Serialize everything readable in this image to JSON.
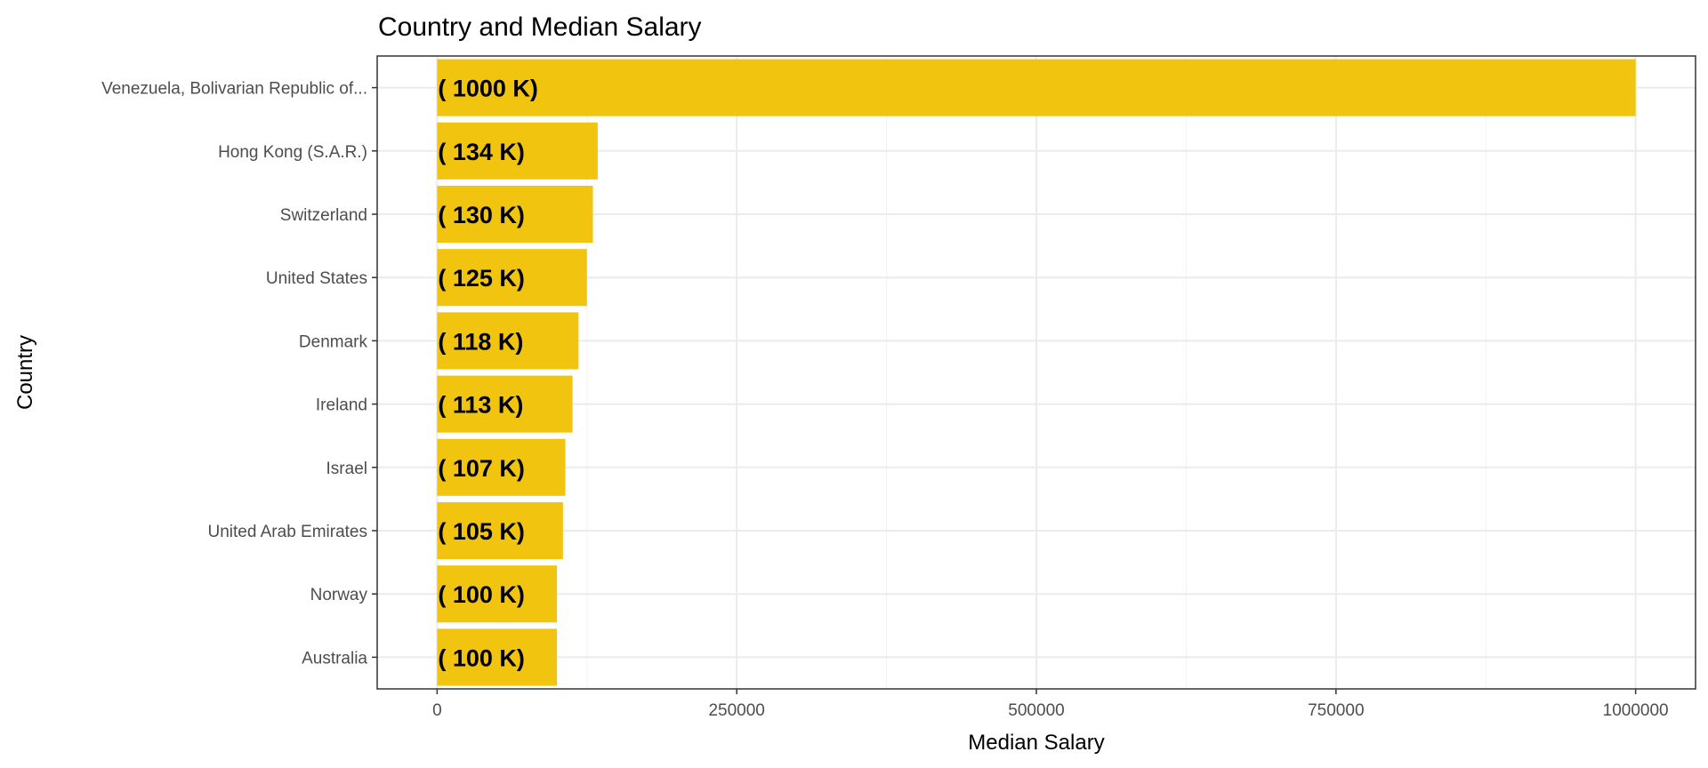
{
  "chart_data": {
    "type": "bar",
    "orientation": "horizontal",
    "title": "Country and Median Salary",
    "xlabel": "Median Salary",
    "ylabel": "Country",
    "categories": [
      "Venezuela, Bolivarian Republic of...",
      "Hong Kong (S.A.R.)",
      "Switzerland",
      "United States",
      "Denmark",
      "Ireland",
      "Israel",
      "United Arab Emirates",
      "Norway",
      "Australia"
    ],
    "values": [
      1000000,
      134000,
      130000,
      125000,
      118000,
      113000,
      107000,
      105000,
      100000,
      100000
    ],
    "data_labels": [
      "( 1000 K)",
      "( 134 K)",
      "( 130 K)",
      "( 125 K)",
      "( 118 K)",
      "( 113 K)",
      "( 107 K)",
      "( 105 K)",
      "( 100 K)",
      "( 100 K)"
    ],
    "xlim": [
      -50000,
      1050000
    ],
    "xticks": [
      0,
      250000,
      500000,
      750000,
      1000000
    ],
    "xtick_labels": [
      "0",
      "250000",
      "500000",
      "750000",
      "1000000"
    ],
    "grid": true,
    "legend": "none",
    "colors": {
      "bar": "#F1C40F",
      "panel_border": "#333333",
      "grid_major": "#EBEBEB",
      "grid_minor": "#F5F5F5",
      "tick_text": "#4D4D4D",
      "text": "#000000"
    }
  }
}
